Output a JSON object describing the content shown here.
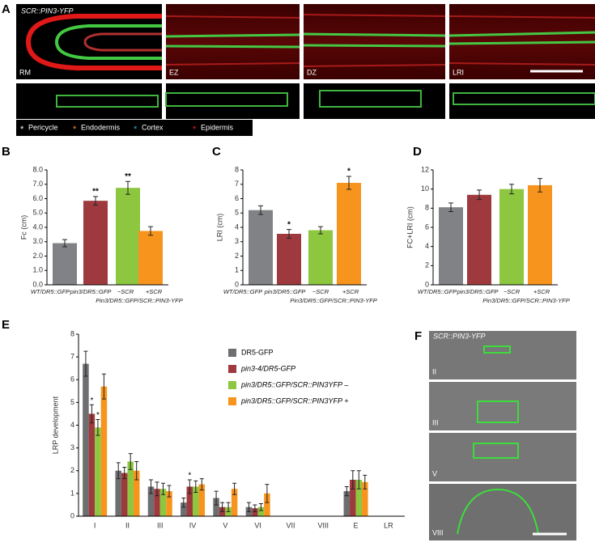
{
  "panel_a": {
    "letter": "A",
    "title": "SCR::PIN3-YFP",
    "images": [
      "RM",
      "EZ",
      "DZ",
      "LRI"
    ],
    "legend": [
      {
        "symbol": "*",
        "label": "Pericycle",
        "color": "#ffffff"
      },
      {
        "symbol": "*",
        "label": "Endodermis",
        "color": "#f7941d"
      },
      {
        "symbol": "*",
        "label": "Cortex",
        "color": "#29a8e0"
      },
      {
        "symbol": "*",
        "label": "Epidermis",
        "color": "#ed1c24"
      }
    ]
  },
  "panel_f": {
    "letter": "F",
    "title": "SCR::PIN3-YFP",
    "images": [
      "II",
      "III",
      "V",
      "VIII"
    ]
  },
  "chart_data": [
    {
      "type": "bar",
      "panel": "B",
      "ylabel": "Fc (cm)",
      "categories": [
        "WT/DR5::GFP",
        "pin3/DR5::GFP",
        "−SCR",
        "+SCR"
      ],
      "group_label": "Pin3/DR5::GFP/SCR::PIN3-YFP",
      "values": [
        2.9,
        5.85,
        6.75,
        3.75
      ],
      "errors": [
        0.25,
        0.3,
        0.45,
        0.3
      ],
      "stars": [
        null,
        "**",
        "**",
        null
      ],
      "colors": [
        "#808285",
        "#9e3a3e",
        "#8dc63f",
        "#f7941d"
      ],
      "ylim": [
        0,
        8
      ],
      "yticks": [
        {
          "value": 0,
          "label": "0.0"
        },
        {
          "value": 1,
          "label": "1.0"
        },
        {
          "value": 2,
          "label": "2.0"
        },
        {
          "value": 3,
          "label": "3.0"
        },
        {
          "value": 4,
          "label": "4.0"
        },
        {
          "value": 5,
          "label": "5.0"
        },
        {
          "value": 6,
          "label": "6.0"
        },
        {
          "value": 7,
          "label": "7.0"
        },
        {
          "value": 8,
          "label": "8.0"
        }
      ]
    },
    {
      "type": "bar",
      "panel": "C",
      "ylabel": "LRI (cm)",
      "categories": [
        "WT/DR5::GFP",
        "pin3/DR5::GFP",
        "−SCR",
        "+SCR"
      ],
      "group_label": "Pin3/DR5::GFP/SCR::PIN3-YFP",
      "values": [
        5.2,
        3.55,
        3.8,
        7.1
      ],
      "errors": [
        0.3,
        0.3,
        0.25,
        0.45
      ],
      "stars": [
        null,
        "*",
        null,
        "*"
      ],
      "colors": [
        "#808285",
        "#9e3a3e",
        "#8dc63f",
        "#f7941d"
      ],
      "ylim": [
        0,
        8
      ],
      "yticks": [
        0,
        1,
        2,
        3,
        4,
        5,
        6,
        7,
        8
      ]
    },
    {
      "type": "bar",
      "panel": "D",
      "ylabel": "FC+LRI (cm)",
      "categories": [
        "WT/DR5::GFP",
        "pin3/DR5::GFP",
        "−SCR",
        "+SCR"
      ],
      "group_label": "Pin3/DR5::GFP/SCR::PIN3-YFP",
      "values": [
        8.1,
        9.4,
        10.0,
        10.4
      ],
      "errors": [
        0.45,
        0.5,
        0.5,
        0.7
      ],
      "stars": [
        null,
        null,
        null,
        null
      ],
      "colors": [
        "#808285",
        "#9e3a3e",
        "#8dc63f",
        "#f7941d"
      ],
      "ylim": [
        0,
        12
      ],
      "yticks": [
        0,
        2,
        4,
        6,
        8,
        10,
        12
      ]
    },
    {
      "type": "grouped_bar",
      "panel": "E",
      "ylabel": "LRP development",
      "categories": [
        "I",
        "II",
        "III",
        "IV",
        "V",
        "VI",
        "VII",
        "VIII",
        "E",
        "LR"
      ],
      "series": [
        {
          "name": "DR5-GFP",
          "color": "#6d6e71",
          "values": [
            6.7,
            2.0,
            1.3,
            0.6,
            0.8,
            0.4,
            0,
            0,
            1.1,
            0
          ],
          "errors": [
            0.55,
            0.35,
            0.3,
            0.2,
            0.3,
            0.2,
            0,
            0,
            0.2,
            0
          ],
          "stars": [
            null,
            null,
            null,
            null,
            null,
            null,
            null,
            null,
            null,
            null
          ]
        },
        {
          "name": "pin3-4/DR5-GFP",
          "color": "#9e3a3e",
          "values": [
            4.5,
            1.9,
            1.2,
            1.3,
            0.4,
            0.35,
            0,
            0,
            1.6,
            0
          ],
          "errors": [
            0.4,
            0.25,
            0.3,
            0.3,
            0.2,
            0.15,
            0,
            0,
            0.4,
            0
          ],
          "stars": [
            "*",
            null,
            null,
            "*",
            null,
            null,
            null,
            null,
            null,
            null
          ]
        },
        {
          "name": "pin3/DR5::GFP/SCR::PIN3YFP –",
          "color": "#8dc63f",
          "values": [
            3.9,
            2.4,
            1.2,
            1.3,
            0.4,
            0.4,
            0,
            0,
            1.6,
            0
          ],
          "errors": [
            0.35,
            0.35,
            0.25,
            0.25,
            0.2,
            0.15,
            0,
            0,
            0.4,
            0
          ],
          "stars": [
            "*",
            null,
            null,
            null,
            null,
            null,
            null,
            null,
            null,
            null
          ]
        },
        {
          "name": "pin3/DR5::GFP/SCR::PIN3YFP +",
          "color": "#f7941d",
          "values": [
            5.7,
            2.0,
            1.1,
            1.4,
            1.2,
            1.0,
            0,
            0,
            1.5,
            0
          ],
          "errors": [
            0.55,
            0.4,
            0.25,
            0.25,
            0.25,
            0.4,
            0,
            0,
            0.3,
            0
          ],
          "stars": [
            null,
            null,
            null,
            null,
            null,
            null,
            null,
            null,
            null,
            null
          ]
        }
      ],
      "ylim": [
        0,
        8
      ],
      "yticks": [
        0,
        1,
        2,
        3,
        4,
        5,
        6,
        7,
        8
      ]
    }
  ]
}
